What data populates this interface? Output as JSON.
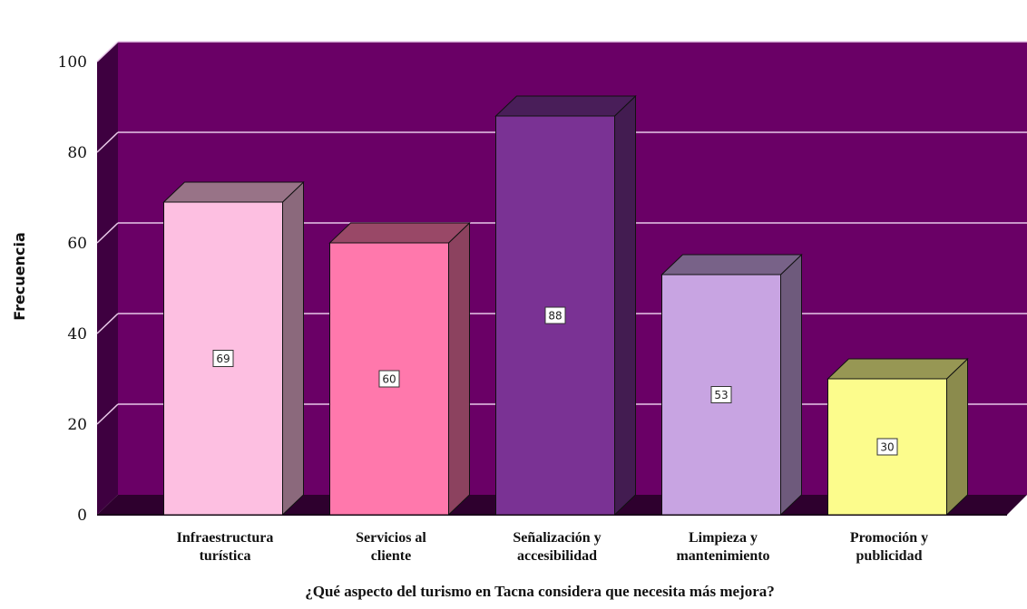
{
  "chart_data": {
    "type": "bar",
    "categories": [
      [
        "Infraestructura",
        "turística"
      ],
      [
        "Servicios al",
        "cliente"
      ],
      [
        "Señalización y",
        "accesibilidad"
      ],
      [
        "Limpieza y",
        "mantenimiento"
      ],
      [
        "Promoción y",
        "publicidad"
      ]
    ],
    "values": [
      69,
      60,
      88,
      53,
      30
    ],
    "data_labels": [
      "69",
      "60",
      "88",
      "53",
      "30"
    ],
    "ylabel": "Frecuencia",
    "xlabel": "¿Qué aspecto del turismo en Tacna considera que necesita más mejora?",
    "ylim": [
      0,
      100
    ],
    "yticks": [
      "0",
      "20",
      "40",
      "60",
      "80",
      "100"
    ],
    "grid": true,
    "style": "3d",
    "colors": {
      "background": "#6a0066",
      "side_wall": "#3e0040",
      "floor": "#2e002e",
      "gridline": "#e8c8e8",
      "bars": [
        "#fdbfe1",
        "#ff78ac",
        "#7a3294",
        "#c8a4e2",
        "#fcfc8c"
      ]
    }
  }
}
